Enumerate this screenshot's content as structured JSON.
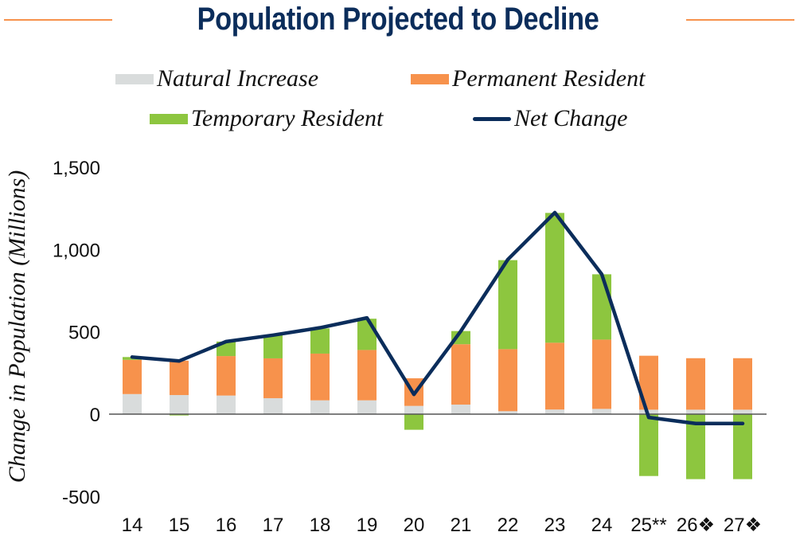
{
  "chart_data": {
    "type": "bar",
    "stacked": true,
    "title": "Population Projected to Decline",
    "xlabel": "",
    "ylabel": "Change in Population (Millions)",
    "ylim": [
      -500,
      1500
    ],
    "yticks": [
      -500,
      0,
      500,
      1000,
      1500
    ],
    "ytick_labels": [
      "-500",
      "0",
      "500",
      "1,000",
      "1,500"
    ],
    "grid": false,
    "legend_position": "top",
    "categories": [
      "14",
      "15",
      "16",
      "17",
      "18",
      "19",
      "20",
      "21",
      "22",
      "23",
      "24",
      "25**",
      "26❖",
      "27❖"
    ],
    "series": [
      {
        "name": "Natural Increase",
        "type": "bar",
        "color": "#d9dcdc",
        "values": [
          122,
          116,
          113,
          97,
          84,
          84,
          50,
          58,
          18,
          28,
          32,
          27,
          27,
          27
        ]
      },
      {
        "name": "Permanent Resident",
        "type": "bar",
        "color": "#f7924c",
        "values": [
          208,
          209,
          240,
          242,
          284,
          306,
          168,
          367,
          377,
          406,
          421,
          328,
          313,
          313
        ]
      },
      {
        "name": "Temporary Resident",
        "type": "bar",
        "color": "#8dc63f",
        "values": [
          17,
          -8,
          88,
          141,
          153,
          190,
          -95,
          80,
          541,
          789,
          397,
          -376,
          -395,
          -395
        ]
      },
      {
        "name": "Net Change",
        "type": "line",
        "color": "#0b2d5b",
        "values": [
          347,
          323,
          441,
          480,
          525,
          585,
          120,
          505,
          940,
          1225,
          850,
          -20,
          -57,
          -57
        ]
      }
    ]
  },
  "title_text": "Population Projected to Decline",
  "legend": [
    {
      "label": "Natural Increase",
      "color": "#d9dcdc",
      "kind": "bar"
    },
    {
      "label": "Permanent Resident",
      "color": "#f7924c",
      "kind": "bar"
    },
    {
      "label": "Temporary Resident",
      "color": "#8dc63f",
      "kind": "bar"
    },
    {
      "label": "Net Change",
      "color": "#0b2d5b",
      "kind": "line"
    }
  ],
  "accent_rule_color": "#f7924c"
}
